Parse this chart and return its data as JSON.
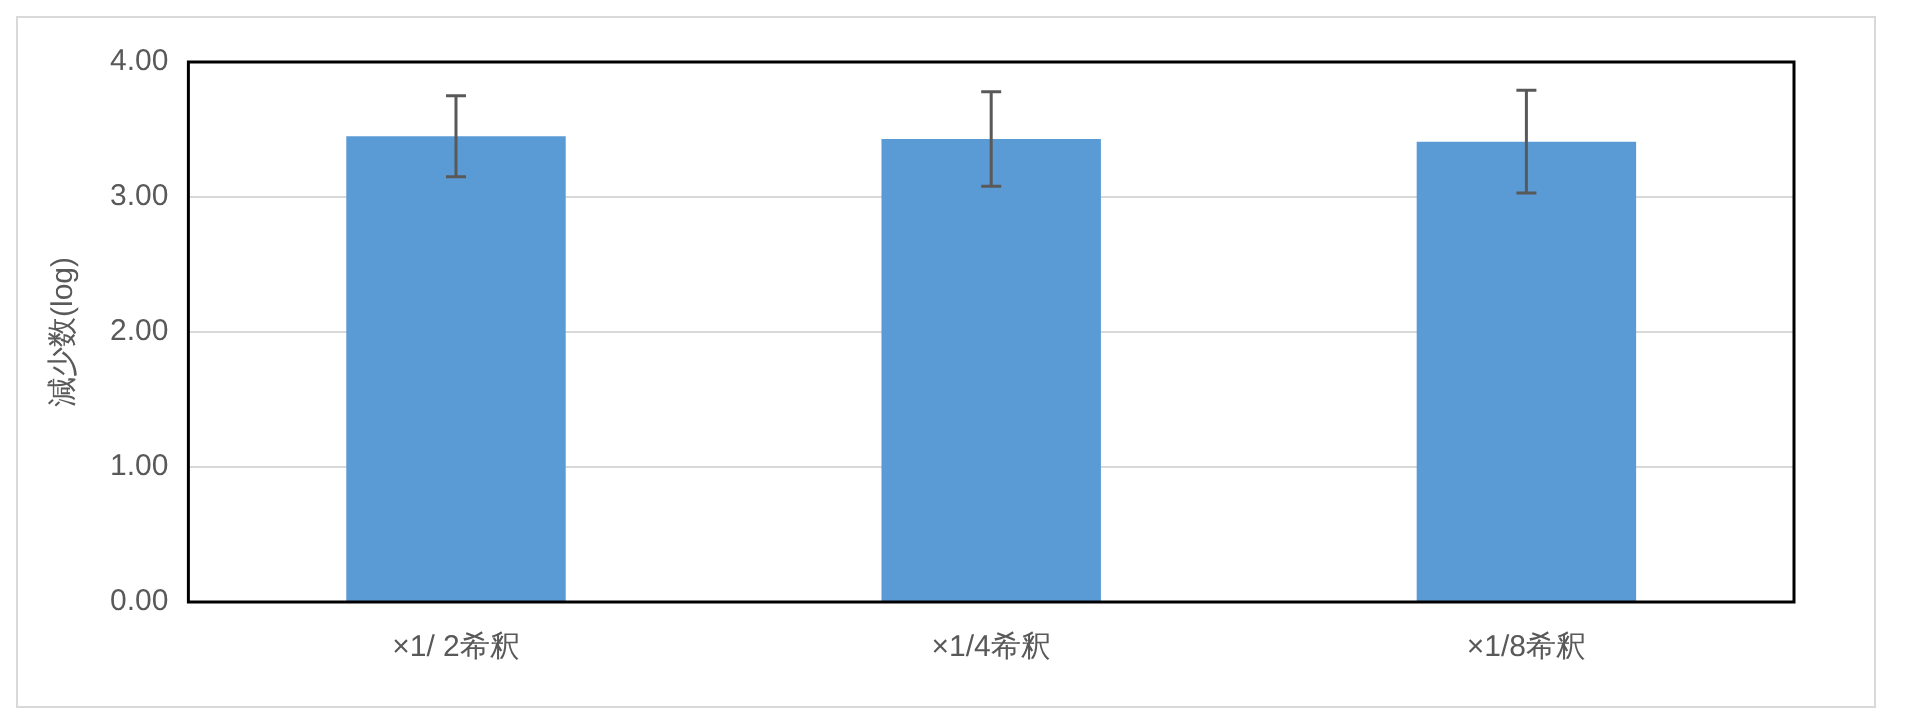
{
  "chart_data": {
    "type": "bar",
    "ylabel": "減少数(log)",
    "categories": [
      "×1/ 2希釈",
      "×1/4希釈",
      "×1/8希釈"
    ],
    "values": [
      3.45,
      3.43,
      3.41
    ],
    "errors": [
      0.3,
      0.35,
      0.38
    ],
    "color": "#5b9bd5",
    "ylim": [
      0,
      4
    ],
    "yticks": [
      {
        "value": 0,
        "label": "0.00"
      },
      {
        "value": 1,
        "label": "1.00"
      },
      {
        "value": 2,
        "label": "2.00"
      },
      {
        "value": 3,
        "label": "3.00"
      },
      {
        "value": 4,
        "label": "4.00"
      }
    ],
    "grid": "y",
    "legend": false
  }
}
